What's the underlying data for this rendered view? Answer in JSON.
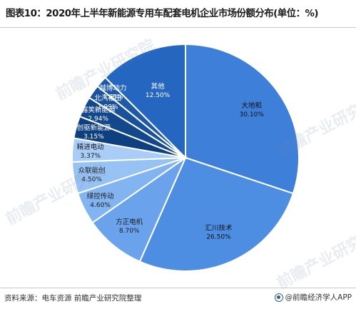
{
  "title": "图表10：2020年上半年新能源专用车配套电机企业市场份额分布(单位：%)",
  "source": "资料来源：电车资源 前瞻产业研究院整理",
  "brand": "@前瞻经济学人APP",
  "watermark_text": "前瞻产业研究院",
  "chart_data": {
    "type": "pie",
    "title": "图表10：2020年上半年新能源专用车配套电机企业市场份额分布(单位：%)",
    "unit": "%",
    "slices": [
      {
        "label": "大地和",
        "value": 30.1,
        "display": "30.10%",
        "color": "#3d7fd9"
      },
      {
        "label": "汇川技术",
        "value": 26.5,
        "display": "26.50%",
        "color": "#4d8ee2"
      },
      {
        "label": "方正电机",
        "value": 8.7,
        "display": "8.70%",
        "color": "#6aa3ec"
      },
      {
        "label": "绿控传动",
        "value": 4.6,
        "display": "4.60%",
        "color": "#82b4f1"
      },
      {
        "label": "众联能创",
        "value": 4.5,
        "display": "4.50%",
        "color": "#97c2f4"
      },
      {
        "label": "精进电动",
        "value": 3.37,
        "display": "3.37%",
        "color": "#a9cdf6"
      },
      {
        "label": "创驱新能源",
        "value": 3.15,
        "display": "3.15%",
        "color": "#0e3f7e"
      },
      {
        "label": "露笑新能源",
        "value": 2.94,
        "display": "2.94%",
        "color": "#14488d"
      },
      {
        "label": "北汽福田",
        "value": 1.99,
        "display": "1.99%",
        "color": "#19519b"
      },
      {
        "label": "越博动力",
        "value": 1.65,
        "display": "1.65%",
        "color": "#1e5aa8"
      },
      {
        "label": "其他",
        "value": 12.5,
        "display": "12.50%",
        "color": "#2466c0"
      }
    ],
    "start_angle_deg": 0,
    "direction": "clockwise",
    "legend": "none"
  }
}
